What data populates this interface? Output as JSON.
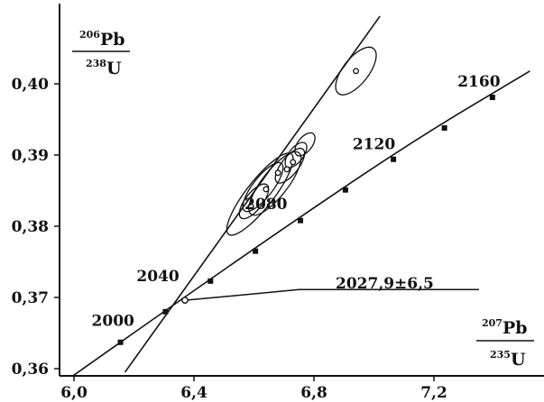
{
  "chart_data": {
    "type": "scatter",
    "xlabel": {
      "sup": "207",
      "top": "Pb",
      "sub": "235",
      "bottom": "U"
    },
    "ylabel": {
      "sup": "206",
      "top": "Pb",
      "sub": "238",
      "bottom": "U"
    },
    "xlim": [
      6.0,
      7.5
    ],
    "ylim": [
      0.3595,
      0.4095
    ],
    "xticks": [
      6.0,
      6.4,
      6.8,
      7.2
    ],
    "xtick_labels": [
      "6,0",
      "6,4",
      "6,8",
      "7,2"
    ],
    "yticks": [
      0.36,
      0.37,
      0.38,
      0.39,
      0.4
    ],
    "ytick_labels": [
      "0,36",
      "0,37",
      "0,38",
      "0,39",
      "0,40"
    ],
    "concordia": {
      "points": [
        [
          5.98,
          0.3585
        ],
        [
          6.35,
          0.3695
        ],
        [
          6.76,
          0.3815
        ],
        [
          7.15,
          0.3925
        ],
        [
          7.52,
          0.4018
        ]
      ],
      "age_marks": [
        {
          "x": 6.155,
          "y": 0.3637
        },
        {
          "x": 6.305,
          "y": 0.368
        },
        {
          "x": 6.455,
          "y": 0.3723
        },
        {
          "x": 6.605,
          "y": 0.3765
        },
        {
          "x": 6.755,
          "y": 0.3808
        },
        {
          "x": 6.905,
          "y": 0.3851
        },
        {
          "x": 7.065,
          "y": 0.3894
        },
        {
          "x": 7.235,
          "y": 0.3938
        },
        {
          "x": 7.395,
          "y": 0.3981
        }
      ],
      "age_labels": [
        {
          "text": "2000",
          "x": 6.13,
          "y": 0.366
        },
        {
          "text": "2040",
          "x": 6.28,
          "y": 0.3723
        },
        {
          "text": "2080",
          "x": 6.64,
          "y": 0.3824
        },
        {
          "text": "2120",
          "x": 7.0,
          "y": 0.3908
        },
        {
          "text": "2160",
          "x": 7.35,
          "y": 0.3996
        }
      ]
    },
    "discordia": {
      "x1": 6.17,
      "y1": 0.3595,
      "x2": 7.02,
      "y2": 0.4095
    },
    "lower_intercept": {
      "x": 6.37,
      "y": 0.3696,
      "label": "2027,9±6,5"
    },
    "label_leader": [
      [
        6.37,
        0.3696
      ],
      [
        6.75,
        0.3711
      ],
      [
        7.35,
        0.3711
      ]
    ],
    "error_ellipses": [
      {
        "x": 6.62,
        "y": 0.3845,
        "rx": 0.34,
        "ry": 0.0019,
        "angle": 0.94
      },
      {
        "x": 6.67,
        "y": 0.386,
        "rx": 0.26,
        "ry": 0.0018,
        "angle": 0.94
      },
      {
        "x": 6.63,
        "y": 0.3855,
        "rx": 0.2,
        "ry": 0.0014,
        "angle": 0.94
      },
      {
        "x": 6.6,
        "y": 0.3835,
        "rx": 0.14,
        "ry": 0.0012,
        "angle": 0.94
      },
      {
        "x": 6.72,
        "y": 0.3885,
        "rx": 0.14,
        "ry": 0.0012,
        "angle": 0.94
      },
      {
        "x": 6.74,
        "y": 0.39,
        "rx": 0.1,
        "ry": 0.001,
        "angle": 0.94
      },
      {
        "x": 6.77,
        "y": 0.3915,
        "rx": 0.09,
        "ry": 0.001,
        "angle": 0.94
      },
      {
        "x": 6.94,
        "y": 0.4018,
        "rx": 0.19,
        "ry": 0.0018,
        "angle": 0.94
      }
    ],
    "data_points": [
      {
        "x": 6.59,
        "y": 0.3828
      },
      {
        "x": 6.64,
        "y": 0.3852
      },
      {
        "x": 6.68,
        "y": 0.3875
      },
      {
        "x": 6.71,
        "y": 0.388
      },
      {
        "x": 6.73,
        "y": 0.389
      },
      {
        "x": 6.94,
        "y": 0.4018
      }
    ]
  }
}
